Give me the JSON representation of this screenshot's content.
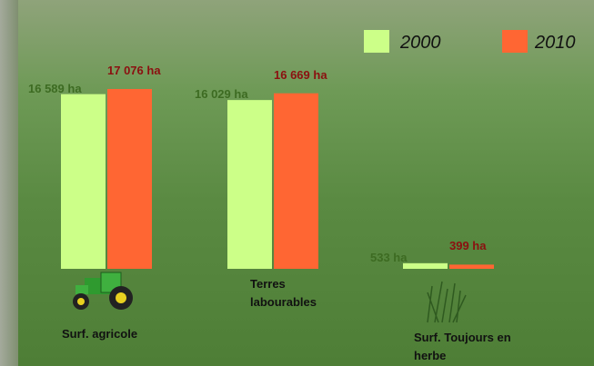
{
  "chart_data": {
    "type": "bar",
    "categories": [
      "Surf. agricole",
      "Terres labourables",
      "Surf. Toujours en herbe"
    ],
    "series": [
      {
        "name": "2000",
        "color": "#ccff88",
        "values": [
          16589,
          16029,
          533
        ],
        "value_labels": [
          "16 589 ha",
          "16 029 ha",
          "533 ha"
        ]
      },
      {
        "name": "2010",
        "color": "#ff6633",
        "values": [
          17076,
          16669,
          399
        ],
        "value_labels": [
          "17 076 ha",
          "16 669 ha",
          "399 ha"
        ]
      }
    ],
    "legend": "top-right"
  }
}
